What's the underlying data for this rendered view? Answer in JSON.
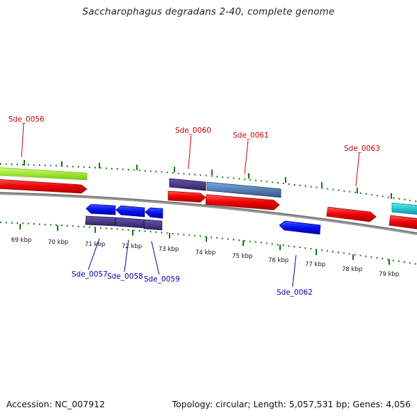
{
  "title": "Saccharophagus degradans 2-40, complete genome",
  "footer": {
    "accession": "Accession: NC_007912",
    "stats": "Topology: circular; Length: 5,057,531 bp; Genes: 4,056"
  },
  "kbp_ticks": [
    "69 kbp",
    "70 kbp",
    "71 kbp",
    "72 kbp",
    "73 kbp",
    "74 kbp",
    "75 kbp",
    "76 kbp",
    "77 kbp",
    "78 kbp",
    "79 kbp"
  ],
  "genes_top": [
    "Sde_0056",
    "Sde_0060",
    "Sde_0061",
    "Sde_0063"
  ],
  "genes_bottom": [
    "Sde_0057",
    "Sde_0058",
    "Sde_0059",
    "Sde_0062"
  ],
  "colors": {
    "forward": "#ee0000",
    "reverse": "#0000ee",
    "cog_purple": "#443388",
    "cog_steel": "#4477aa",
    "cog_lime": "#99ee22",
    "cog_cyan": "#11cccc",
    "tick": "#117711",
    "backbone": "#888888"
  }
}
